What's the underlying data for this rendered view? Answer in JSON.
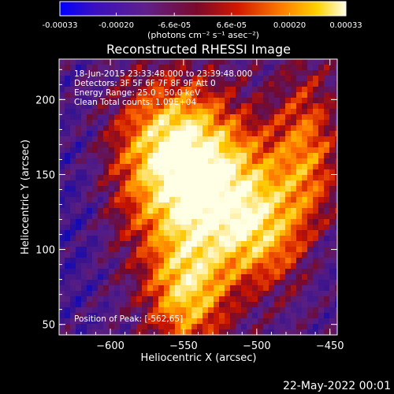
{
  "colorbar": {
    "tick_labels": [
      "-0.00033",
      "-0.00020",
      "-6.6e-05",
      "6.6e-05",
      "0.00020",
      "0.00033"
    ],
    "tick_values": [
      -0.00033,
      -0.0002,
      -6.6e-05,
      6.6e-05,
      0.0002,
      0.00033
    ],
    "range": [
      -0.00033,
      0.00033
    ],
    "units_label": "(photons cm⁻² s⁻¹ asec⁻²)",
    "colors": [
      "#0000ff",
      "#5a1a9a",
      "#8a0a3a",
      "#d02000",
      "#ff7a00",
      "#ffd700",
      "#ffffe0"
    ]
  },
  "chart_data": {
    "type": "heatmap",
    "title": "Reconstructed RHESSI Image",
    "xlabel": "Heliocentric X (arcsec)",
    "ylabel": "Heliocentric Y (arcsec)",
    "xlim": [
      -635,
      -445
    ],
    "ylim": [
      43,
      227
    ],
    "x_ticks": [
      -600,
      -550,
      -500,
      -450
    ],
    "y_ticks": [
      50,
      100,
      150,
      200
    ],
    "x_tick_labels": [
      "−600",
      "−550",
      "−500",
      "−450"
    ],
    "y_tick_labels": [
      "50",
      "100",
      "150",
      "200"
    ],
    "annotations": [
      "18-Jun-2015 23:33:48.000 to 23:39:48.000",
      "Detectors: 3F 5F 6F 7F 8F 9F  Att 0",
      "Energy Range: 25.0 - 50.0 keV",
      "Clean     Total counts: 1.09E+04"
    ],
    "peak_label": "Position of Peak: [-562,65]",
    "peak": [
      -562,
      65
    ]
  },
  "footer": {
    "timestamp": "22-May-2022 00:01"
  }
}
